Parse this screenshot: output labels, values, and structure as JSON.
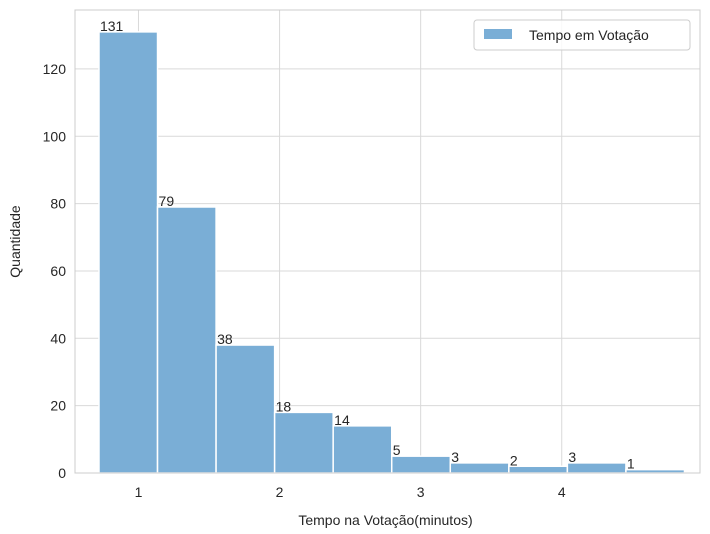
{
  "chart_data": {
    "type": "bar",
    "xlabel": "Tempo na Votação(minutos)",
    "ylabel": "Quantidade",
    "xlim": [
      0.55,
      4.98
    ],
    "ylim": [
      0,
      137.5
    ],
    "xticks": [
      1,
      2,
      3,
      4
    ],
    "yticks": [
      0,
      20,
      40,
      60,
      80,
      100,
      120
    ],
    "grid": true,
    "legend_position": "top-right",
    "bar_color": "#7aaed6",
    "series": [
      {
        "name": "Tempo em Votação",
        "bins": [
          {
            "x0": 0.72,
            "x1": 1.135,
            "value": 131,
            "label": "131"
          },
          {
            "x0": 1.135,
            "x1": 1.55,
            "value": 79,
            "label": "79"
          },
          {
            "x0": 1.55,
            "x1": 1.965,
            "value": 38,
            "label": "38"
          },
          {
            "x0": 1.965,
            "x1": 2.38,
            "value": 18,
            "label": "18"
          },
          {
            "x0": 2.38,
            "x1": 2.795,
            "value": 14,
            "label": "14"
          },
          {
            "x0": 2.795,
            "x1": 3.21,
            "value": 5,
            "label": "5"
          },
          {
            "x0": 3.21,
            "x1": 3.625,
            "value": 3,
            "label": "3"
          },
          {
            "x0": 3.625,
            "x1": 4.04,
            "value": 2,
            "label": "2"
          },
          {
            "x0": 4.04,
            "x1": 4.455,
            "value": 3,
            "label": "3"
          },
          {
            "x0": 4.455,
            "x1": 4.87,
            "value": 1,
            "label": "1"
          }
        ]
      }
    ]
  }
}
